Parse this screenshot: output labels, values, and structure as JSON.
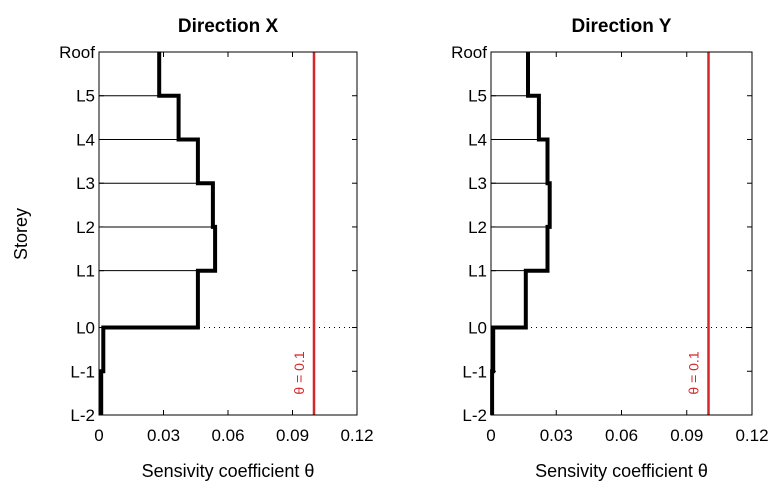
{
  "figure": {
    "ylabel": "Storey",
    "colors": {
      "step_line": "#000000",
      "reference_line": "#d62728",
      "frame": "#000000"
    }
  },
  "chart_data": [
    {
      "type": "line",
      "title": "Direction X",
      "xlabel": "Sensivity coefficient θ",
      "ylabel": "Storey",
      "xlim": [
        0,
        0.12
      ],
      "x_ticks": [
        0,
        0.03,
        0.06,
        0.09,
        0.12
      ],
      "x_tick_labels": [
        "0",
        "0.03",
        "0.06",
        "0.09",
        "0.12"
      ],
      "storeys": [
        "L-2",
        "L-1",
        "L0",
        "L1",
        "L2",
        "L3",
        "L4",
        "L5",
        "Roof"
      ],
      "storey_elevations": [
        0,
        1,
        2,
        3.3,
        4.3,
        5.3,
        6.3,
        7.3,
        8.3
      ],
      "theta": [
        0.001,
        0.002,
        0.046,
        0.054,
        0.053,
        0.046,
        0.037,
        0.028
      ],
      "reference_line": {
        "value": 0.1,
        "label": "θ = 0.1"
      },
      "grid": false
    },
    {
      "type": "line",
      "title": "Direction Y",
      "xlabel": "Sensivity coefficient θ",
      "ylabel": "",
      "xlim": [
        0,
        0.12
      ],
      "x_ticks": [
        0,
        0.03,
        0.06,
        0.09,
        0.12
      ],
      "x_tick_labels": [
        "0",
        "0.03",
        "0.06",
        "0.09",
        "0.12"
      ],
      "storeys": [
        "L-2",
        "L-1",
        "L0",
        "L1",
        "L2",
        "L3",
        "L4",
        "L5",
        "Roof"
      ],
      "storey_elevations": [
        0,
        1,
        2,
        3.3,
        4.3,
        5.3,
        6.3,
        7.3,
        8.3
      ],
      "theta": [
        0.0005,
        0.001,
        0.016,
        0.026,
        0.027,
        0.026,
        0.022,
        0.017
      ],
      "reference_line": {
        "value": 0.1,
        "label": "θ = 0.1"
      },
      "grid": false
    }
  ]
}
